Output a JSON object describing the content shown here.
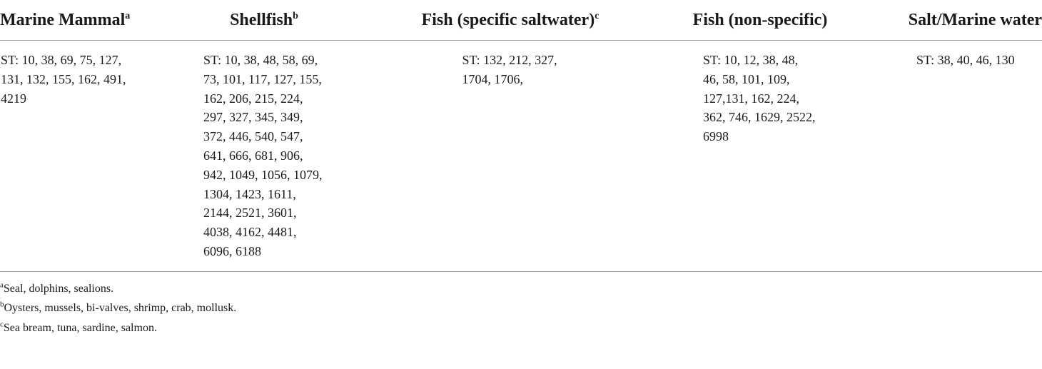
{
  "headers": [
    {
      "label": "Marine Mammal",
      "sup": "a"
    },
    {
      "label": "Shellfish",
      "sup": "b"
    },
    {
      "label": "Fish (specific saltwater)",
      "sup": "c"
    },
    {
      "label": "Fish (non-specific)",
      "sup": ""
    },
    {
      "label": "Salt/Marine water",
      "sup": ""
    }
  ],
  "row": [
    "ST: 10, 38, 69, 75, 127, 131, 132, 155, 162, 491, 4219",
    "ST: 10, 38, 48, 58, 69, 73, 101, 117, 127, 155, 162, 206, 215, 224, 297, 327, 345, 349, 372, 446, 540, 547, 641, 666, 681, 906, 942, 1049, 1056, 1079, 1304, 1423, 1611, 2144, 2521, 3601, 4038, 4162, 4481, 6096, 6188",
    "ST: 132, 212, 327, 1704, 1706,",
    "ST: 10, 12, 38, 48, 46, 58, 101, 109, 127,131, 162, 224, 362, 746, 1629, 2522, 6998",
    "ST: 38, 40, 46, 130"
  ],
  "footnotes": [
    {
      "mark": "a",
      "text": "Seal, dolphins, sealions."
    },
    {
      "mark": "b",
      "text": "Oysters, mussels, bi-valves, shrimp, crab, mollusk."
    },
    {
      "mark": "c",
      "text": "Sea bream, tuna, sardine, salmon."
    }
  ]
}
